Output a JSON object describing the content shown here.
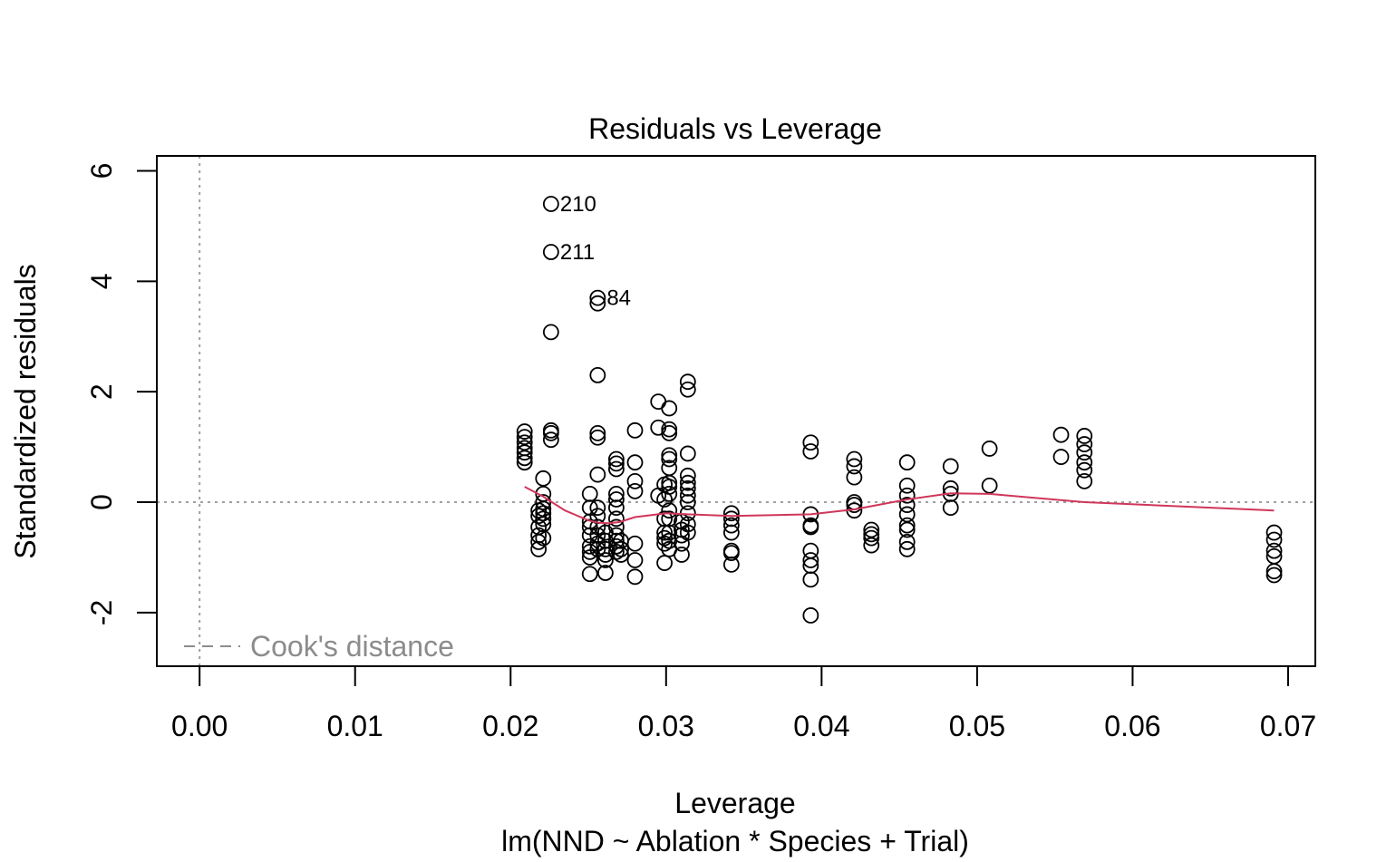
{
  "chart_data": {
    "type": "scatter",
    "title": "Residuals vs Leverage",
    "xlabel": "Leverage",
    "subtitle": "lm(NND ~ Ablation * Species + Trial)",
    "ylabel": "Standardized residuals",
    "xlim": [
      -0.00275,
      0.07175
    ],
    "ylim": [
      -2.97,
      6.27
    ],
    "x_ticks": [
      0.0,
      0.01,
      0.02,
      0.03,
      0.04,
      0.05,
      0.06,
      0.07
    ],
    "x_tick_labels": [
      "0.00",
      "0.01",
      "0.02",
      "0.03",
      "0.04",
      "0.05",
      "0.06",
      "0.07"
    ],
    "y_ticks": [
      -2,
      0,
      2,
      4,
      6
    ],
    "y_tick_labels": [
      "-2",
      "0",
      "2",
      "4",
      "6"
    ],
    "grid": false,
    "reference_lines": {
      "horizontal_y": 0,
      "vertical_x": 0,
      "color": "#a0a0a0",
      "style": "dotted"
    },
    "legend": {
      "label": "Cook's distance",
      "position": "bottom-left",
      "style": "dashed",
      "color": "#8c8c8c"
    },
    "annotations": [
      {
        "label": "210",
        "x": 0.0226,
        "y": 5.4
      },
      {
        "label": "211",
        "x": 0.0226,
        "y": 4.53
      },
      {
        "label": "84",
        "x": 0.0256,
        "y": 3.7
      }
    ],
    "points": [
      [
        0.0209,
        1.28
      ],
      [
        0.0209,
        1.18
      ],
      [
        0.0209,
        1.08
      ],
      [
        0.0209,
        0.98
      ],
      [
        0.0209,
        0.9
      ],
      [
        0.0209,
        0.8
      ],
      [
        0.0209,
        0.72
      ],
      [
        0.0218,
        -0.15
      ],
      [
        0.0218,
        -0.25
      ],
      [
        0.0218,
        -0.45
      ],
      [
        0.0218,
        -0.6
      ],
      [
        0.0218,
        -0.72
      ],
      [
        0.0218,
        -0.85
      ],
      [
        0.0221,
        0.43
      ],
      [
        0.0221,
        0.15
      ],
      [
        0.0221,
        0.0
      ],
      [
        0.0221,
        -0.12
      ],
      [
        0.0221,
        -0.2
      ],
      [
        0.0221,
        -0.3
      ],
      [
        0.0221,
        -0.4
      ],
      [
        0.0221,
        -0.65
      ],
      [
        0.0226,
        5.4
      ],
      [
        0.0226,
        4.53
      ],
      [
        0.0226,
        3.08
      ],
      [
        0.0226,
        1.3
      ],
      [
        0.0226,
        1.25
      ],
      [
        0.0226,
        1.13
      ],
      [
        0.0251,
        0.15
      ],
      [
        0.0251,
        -0.1
      ],
      [
        0.0251,
        -0.35
      ],
      [
        0.0251,
        -0.45
      ],
      [
        0.0251,
        -0.6
      ],
      [
        0.0251,
        -0.8
      ],
      [
        0.0251,
        -0.9
      ],
      [
        0.0251,
        -1.0
      ],
      [
        0.0251,
        -1.3
      ],
      [
        0.0256,
        3.7
      ],
      [
        0.0256,
        3.6
      ],
      [
        0.0256,
        2.3
      ],
      [
        0.0256,
        1.25
      ],
      [
        0.0256,
        1.17
      ],
      [
        0.0256,
        0.5
      ],
      [
        0.0256,
        -0.1
      ],
      [
        0.0256,
        -0.25
      ],
      [
        0.0256,
        -0.45
      ],
      [
        0.0256,
        -0.6
      ],
      [
        0.0256,
        -0.75
      ],
      [
        0.0256,
        -0.85
      ],
      [
        0.0261,
        -0.55
      ],
      [
        0.0261,
        -0.7
      ],
      [
        0.0261,
        -0.85
      ],
      [
        0.0261,
        -0.95
      ],
      [
        0.0261,
        -1.05
      ],
      [
        0.0261,
        -1.28
      ],
      [
        0.0268,
        0.78
      ],
      [
        0.0268,
        0.7
      ],
      [
        0.0268,
        0.6
      ],
      [
        0.0268,
        0.15
      ],
      [
        0.0268,
        0.05
      ],
      [
        0.0268,
        -0.1
      ],
      [
        0.0268,
        -0.3
      ],
      [
        0.0268,
        -0.45
      ],
      [
        0.0268,
        -0.6
      ],
      [
        0.0268,
        -0.7
      ],
      [
        0.0268,
        -0.8
      ],
      [
        0.0268,
        -0.9
      ],
      [
        0.0271,
        -0.7
      ],
      [
        0.0271,
        -0.85
      ],
      [
        0.0271,
        -0.95
      ],
      [
        0.028,
        1.3
      ],
      [
        0.028,
        0.72
      ],
      [
        0.028,
        0.38
      ],
      [
        0.028,
        0.2
      ],
      [
        0.028,
        -0.75
      ],
      [
        0.028,
        -1.05
      ],
      [
        0.028,
        -1.35
      ],
      [
        0.0295,
        1.82
      ],
      [
        0.0295,
        1.35
      ],
      [
        0.0295,
        0.12
      ],
      [
        0.0299,
        0.32
      ],
      [
        0.0299,
        0.05
      ],
      [
        0.0299,
        -0.3
      ],
      [
        0.0299,
        -0.55
      ],
      [
        0.0299,
        -0.65
      ],
      [
        0.0299,
        -0.75
      ],
      [
        0.0299,
        -1.1
      ],
      [
        0.0302,
        1.7
      ],
      [
        0.0302,
        1.32
      ],
      [
        0.0302,
        1.25
      ],
      [
        0.0302,
        0.85
      ],
      [
        0.0302,
        0.78
      ],
      [
        0.0302,
        0.62
      ],
      [
        0.0302,
        0.35
      ],
      [
        0.0302,
        0.28
      ],
      [
        0.0302,
        0.15
      ],
      [
        0.0302,
        -0.15
      ],
      [
        0.0302,
        -0.3
      ],
      [
        0.0302,
        -0.55
      ],
      [
        0.0302,
        -0.7
      ],
      [
        0.0302,
        -0.85
      ],
      [
        0.031,
        -0.35
      ],
      [
        0.031,
        -0.5
      ],
      [
        0.031,
        -0.6
      ],
      [
        0.031,
        -0.75
      ],
      [
        0.031,
        -0.95
      ],
      [
        0.0314,
        2.18
      ],
      [
        0.0314,
        2.04
      ],
      [
        0.0314,
        0.88
      ],
      [
        0.0314,
        0.48
      ],
      [
        0.0314,
        0.35
      ],
      [
        0.0314,
        0.25
      ],
      [
        0.0314,
        0.12
      ],
      [
        0.0314,
        0.0
      ],
      [
        0.0314,
        -0.2
      ],
      [
        0.0314,
        -0.4
      ],
      [
        0.0314,
        -0.55
      ],
      [
        0.0342,
        -0.2
      ],
      [
        0.0342,
        -0.3
      ],
      [
        0.0342,
        -0.42
      ],
      [
        0.0342,
        -0.55
      ],
      [
        0.0342,
        -0.88
      ],
      [
        0.0342,
        -0.92
      ],
      [
        0.0342,
        -1.13
      ],
      [
        0.0393,
        1.08
      ],
      [
        0.0393,
        0.92
      ],
      [
        0.0393,
        -0.22
      ],
      [
        0.0393,
        -0.42
      ],
      [
        0.0393,
        -0.45
      ],
      [
        0.0393,
        -0.88
      ],
      [
        0.0393,
        -1.05
      ],
      [
        0.0393,
        -1.15
      ],
      [
        0.0393,
        -1.4
      ],
      [
        0.0393,
        -2.05
      ],
      [
        0.0421,
        0.78
      ],
      [
        0.0421,
        0.65
      ],
      [
        0.0421,
        0.45
      ],
      [
        0.0421,
        0.0
      ],
      [
        0.0421,
        -0.05
      ],
      [
        0.0421,
        -0.15
      ],
      [
        0.0432,
        -0.5
      ],
      [
        0.0432,
        -0.58
      ],
      [
        0.0432,
        -0.65
      ],
      [
        0.0432,
        -0.78
      ],
      [
        0.0455,
        0.72
      ],
      [
        0.0455,
        0.3
      ],
      [
        0.0455,
        0.12
      ],
      [
        0.0455,
        -0.05
      ],
      [
        0.0455,
        -0.22
      ],
      [
        0.0455,
        -0.42
      ],
      [
        0.0455,
        -0.5
      ],
      [
        0.0455,
        -0.72
      ],
      [
        0.0455,
        -0.85
      ],
      [
        0.0483,
        0.65
      ],
      [
        0.0483,
        0.25
      ],
      [
        0.0483,
        0.15
      ],
      [
        0.0483,
        -0.1
      ],
      [
        0.0508,
        0.97
      ],
      [
        0.0508,
        0.3
      ],
      [
        0.0554,
        1.22
      ],
      [
        0.0554,
        0.82
      ],
      [
        0.0569,
        1.2
      ],
      [
        0.0569,
        1.05
      ],
      [
        0.0569,
        0.9
      ],
      [
        0.0569,
        0.72
      ],
      [
        0.0569,
        0.58
      ],
      [
        0.0569,
        0.38
      ],
      [
        0.0691,
        -0.55
      ],
      [
        0.0691,
        -0.68
      ],
      [
        0.0691,
        -0.88
      ],
      [
        0.0691,
        -0.98
      ],
      [
        0.0691,
        -1.25
      ],
      [
        0.0691,
        -1.32
      ]
    ],
    "smooth_line": {
      "color": "#d0365a",
      "x": [
        0.0209,
        0.0221,
        0.0235,
        0.025,
        0.0256,
        0.0263,
        0.027,
        0.028,
        0.03,
        0.0314,
        0.0342,
        0.0393,
        0.0421,
        0.0455,
        0.0483,
        0.0508,
        0.0569,
        0.0691
      ],
      "y": [
        0.28,
        0.1,
        -0.15,
        -0.33,
        -0.37,
        -0.38,
        -0.36,
        -0.27,
        -0.2,
        -0.22,
        -0.25,
        -0.22,
        -0.13,
        0.05,
        0.16,
        0.15,
        0.0,
        -0.15
      ]
    }
  }
}
